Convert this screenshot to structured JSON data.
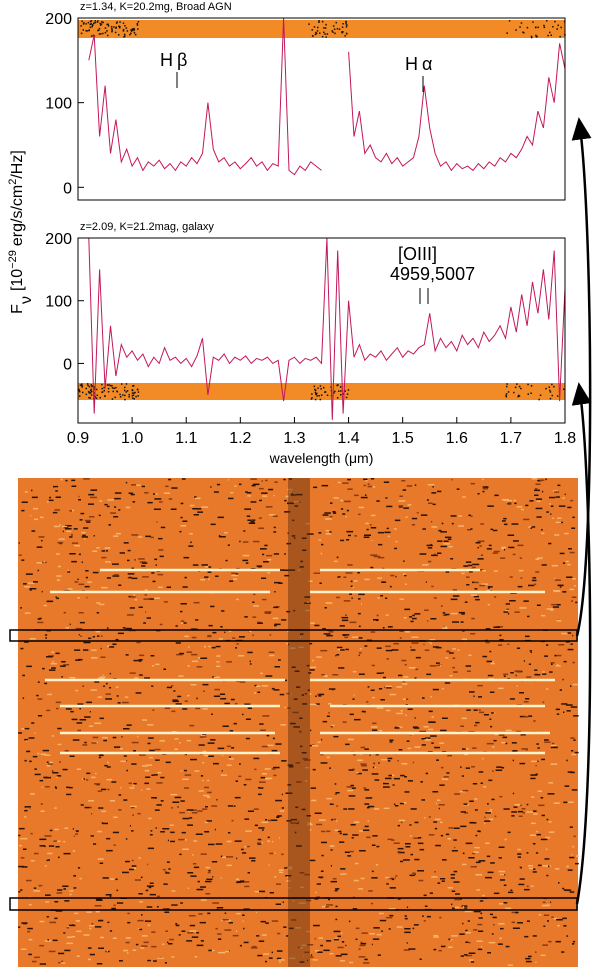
{
  "chart_data": [
    {
      "type": "line",
      "title": "z=1.34, K=20.2mg, Broad AGN",
      "color": "#c2185b",
      "ylim": [
        -15,
        200
      ],
      "yticks": [
        0,
        100,
        200
      ],
      "xlim": [
        0.9,
        1.8
      ],
      "annotations": [
        "Hβ",
        "Hα"
      ],
      "x": [
        0.92,
        0.93,
        0.94,
        0.95,
        0.96,
        0.97,
        0.98,
        0.99,
        1.0,
        1.01,
        1.02,
        1.03,
        1.04,
        1.05,
        1.06,
        1.07,
        1.08,
        1.09,
        1.1,
        1.11,
        1.12,
        1.13,
        1.14,
        1.15,
        1.16,
        1.17,
        1.18,
        1.19,
        1.2,
        1.21,
        1.22,
        1.23,
        1.24,
        1.25,
        1.26,
        1.27,
        1.28,
        1.29,
        1.3,
        1.31,
        1.32,
        1.33,
        1.34,
        1.35,
        1.36,
        1.37,
        1.38,
        1.39,
        1.4,
        1.41,
        1.42,
        1.43,
        1.44,
        1.45,
        1.46,
        1.47,
        1.48,
        1.49,
        1.5,
        1.51,
        1.52,
        1.53,
        1.54,
        1.55,
        1.56,
        1.57,
        1.58,
        1.59,
        1.6,
        1.61,
        1.62,
        1.63,
        1.64,
        1.65,
        1.66,
        1.67,
        1.68,
        1.69,
        1.7,
        1.71,
        1.72,
        1.73,
        1.74,
        1.75,
        1.76,
        1.77,
        1.78,
        1.79,
        1.8
      ],
      "values": [
        150,
        180,
        60,
        120,
        40,
        80,
        30,
        45,
        25,
        35,
        20,
        30,
        25,
        32,
        22,
        28,
        20,
        30,
        25,
        35,
        28,
        40,
        100,
        45,
        30,
        35,
        25,
        30,
        22,
        28,
        35,
        25,
        30,
        20,
        28,
        25,
        200,
        20,
        15,
        25,
        20,
        30,
        25,
        20,
        null,
        null,
        null,
        null,
        160,
        60,
        90,
        40,
        50,
        35,
        30,
        40,
        28,
        35,
        25,
        30,
        35,
        60,
        120,
        70,
        40,
        25,
        30,
        20,
        28,
        22,
        25,
        20,
        28,
        22,
        30,
        25,
        35,
        30,
        40,
        35,
        45,
        60,
        50,
        90,
        70,
        130,
        100,
        170,
        140
      ]
    },
    {
      "type": "line",
      "title": "z=2.09, K=21.2mag, galaxy",
      "color": "#c2185b",
      "ylim": [
        -95,
        200
      ],
      "yticks": [
        0,
        100,
        200
      ],
      "xlim": [
        0.9,
        1.8
      ],
      "xticks": [
        0.9,
        {
          "value": 1,
          "label": "1.0"
        },
        1.1,
        1.2,
        1.3,
        1.4,
        1.5,
        1.6,
        1.7,
        1.8
      ],
      "xlabel": "wavelength (μm)",
      "ylabel_parts": [
        "F",
        "ν",
        "[10",
        "−29",
        "erg/s/cm",
        "2",
        "/Hz]"
      ],
      "annotations": [
        "[OIII]",
        "4959,5007"
      ],
      "x": [
        0.92,
        0.93,
        0.94,
        0.95,
        0.96,
        0.97,
        0.98,
        0.99,
        1.0,
        1.01,
        1.02,
        1.03,
        1.04,
        1.05,
        1.06,
        1.07,
        1.08,
        1.09,
        1.1,
        1.11,
        1.12,
        1.13,
        1.14,
        1.15,
        1.16,
        1.17,
        1.18,
        1.19,
        1.2,
        1.21,
        1.22,
        1.23,
        1.24,
        1.25,
        1.26,
        1.27,
        1.28,
        1.29,
        1.3,
        1.31,
        1.32,
        1.33,
        1.34,
        1.35,
        1.36,
        1.37,
        1.38,
        1.39,
        1.4,
        1.41,
        1.42,
        1.43,
        1.44,
        1.45,
        1.46,
        1.47,
        1.48,
        1.49,
        1.5,
        1.51,
        1.52,
        1.53,
        1.54,
        1.55,
        1.56,
        1.57,
        1.58,
        1.59,
        1.6,
        1.61,
        1.62,
        1.63,
        1.64,
        1.65,
        1.66,
        1.67,
        1.68,
        1.69,
        1.7,
        1.71,
        1.72,
        1.73,
        1.74,
        1.75,
        1.76,
        1.77,
        1.78,
        1.79,
        1.8
      ],
      "values": [
        200,
        -80,
        150,
        -40,
        60,
        -20,
        30,
        10,
        20,
        5,
        15,
        -5,
        10,
        0,
        25,
        5,
        10,
        0,
        8,
        -5,
        12,
        40,
        -50,
        10,
        5,
        15,
        0,
        10,
        5,
        12,
        0,
        8,
        5,
        10,
        0,
        5,
        -60,
        5,
        10,
        0,
        8,
        5,
        10,
        0,
        200,
        -90,
        180,
        -80,
        100,
        10,
        30,
        5,
        15,
        10,
        20,
        5,
        15,
        25,
        10,
        20,
        15,
        25,
        30,
        80,
        20,
        40,
        25,
        35,
        20,
        45,
        30,
        40,
        25,
        50,
        35,
        45,
        60,
        40,
        90,
        50,
        110,
        60,
        130,
        80,
        150,
        70,
        180,
        -60,
        120
      ]
    }
  ]
}
